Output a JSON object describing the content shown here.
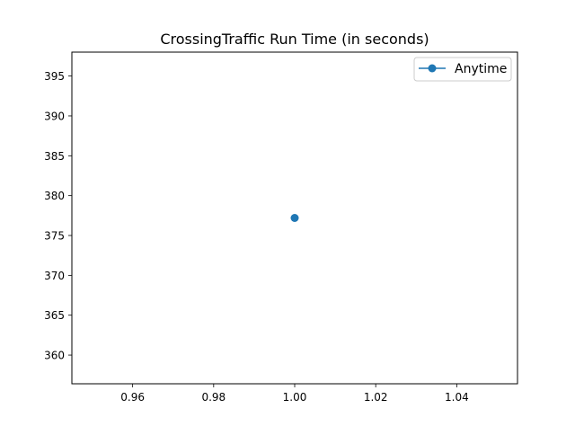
{
  "chart_data": {
    "type": "line",
    "title": "CrossingTraffic Run Time (in seconds)",
    "xlabel": "",
    "ylabel": "",
    "xlim": [
      0.945,
      1.055
    ],
    "ylim": [
      356.4,
      398.0
    ],
    "x_ticks": [
      0.96,
      0.98,
      1.0,
      1.02,
      1.04
    ],
    "x_tick_labels": [
      "0.96",
      "0.98",
      "1.00",
      "1.02",
      "1.04"
    ],
    "y_ticks": [
      360,
      365,
      370,
      375,
      380,
      385,
      390,
      395
    ],
    "y_tick_labels": [
      "360",
      "365",
      "370",
      "375",
      "380",
      "385",
      "390",
      "395"
    ],
    "grid": false,
    "legend_position": "upper right",
    "series": [
      {
        "name": "Anytime",
        "color": "#1f77b4",
        "marker": "circle",
        "x": [
          1.0
        ],
        "y": [
          377.2
        ]
      }
    ]
  }
}
